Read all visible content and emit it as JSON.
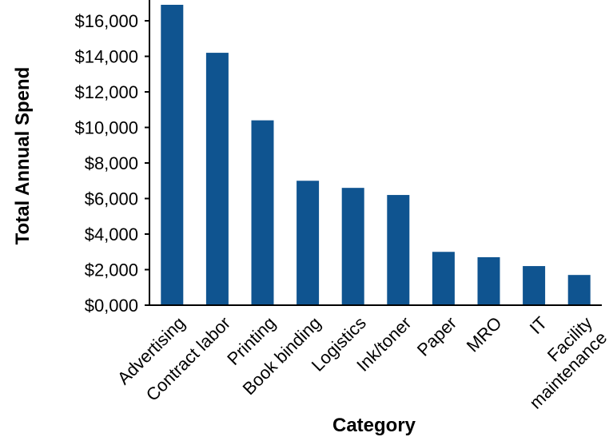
{
  "chart_data": {
    "type": "bar",
    "title": "",
    "xlabel": "Category",
    "ylabel": "Total Annual Spend",
    "categories": [
      "Advertising",
      "Contract labor",
      "Printing",
      "Book binding",
      "Logistics",
      "Ink/toner",
      "Paper",
      "MRO",
      "IT",
      "Facility maintenance"
    ],
    "category_label_lines": [
      [
        "Advertising"
      ],
      [
        "Contract labor"
      ],
      [
        "Printing"
      ],
      [
        "Book binding"
      ],
      [
        "Logistics"
      ],
      [
        "Ink/toner"
      ],
      [
        "Paper"
      ],
      [
        "MRO"
      ],
      [
        "IT"
      ],
      [
        "Facility",
        "maintenance"
      ]
    ],
    "values": [
      16900,
      14200,
      10400,
      7000,
      6600,
      6200,
      3000,
      2700,
      2200,
      1700
    ],
    "ylim": [
      0,
      16900
    ],
    "yticks": [
      0,
      2000,
      4000,
      6000,
      8000,
      10000,
      12000,
      14000,
      16000
    ],
    "ytick_labels": [
      "$0,000",
      "$2,000",
      "$4,000",
      "$6,000",
      "$8,000",
      "$10,000",
      "$12,000",
      "$14,000",
      "$16,000"
    ],
    "grid": false,
    "legend": "none",
    "bar_color": "#0f5490",
    "axis_color": "#000000"
  }
}
